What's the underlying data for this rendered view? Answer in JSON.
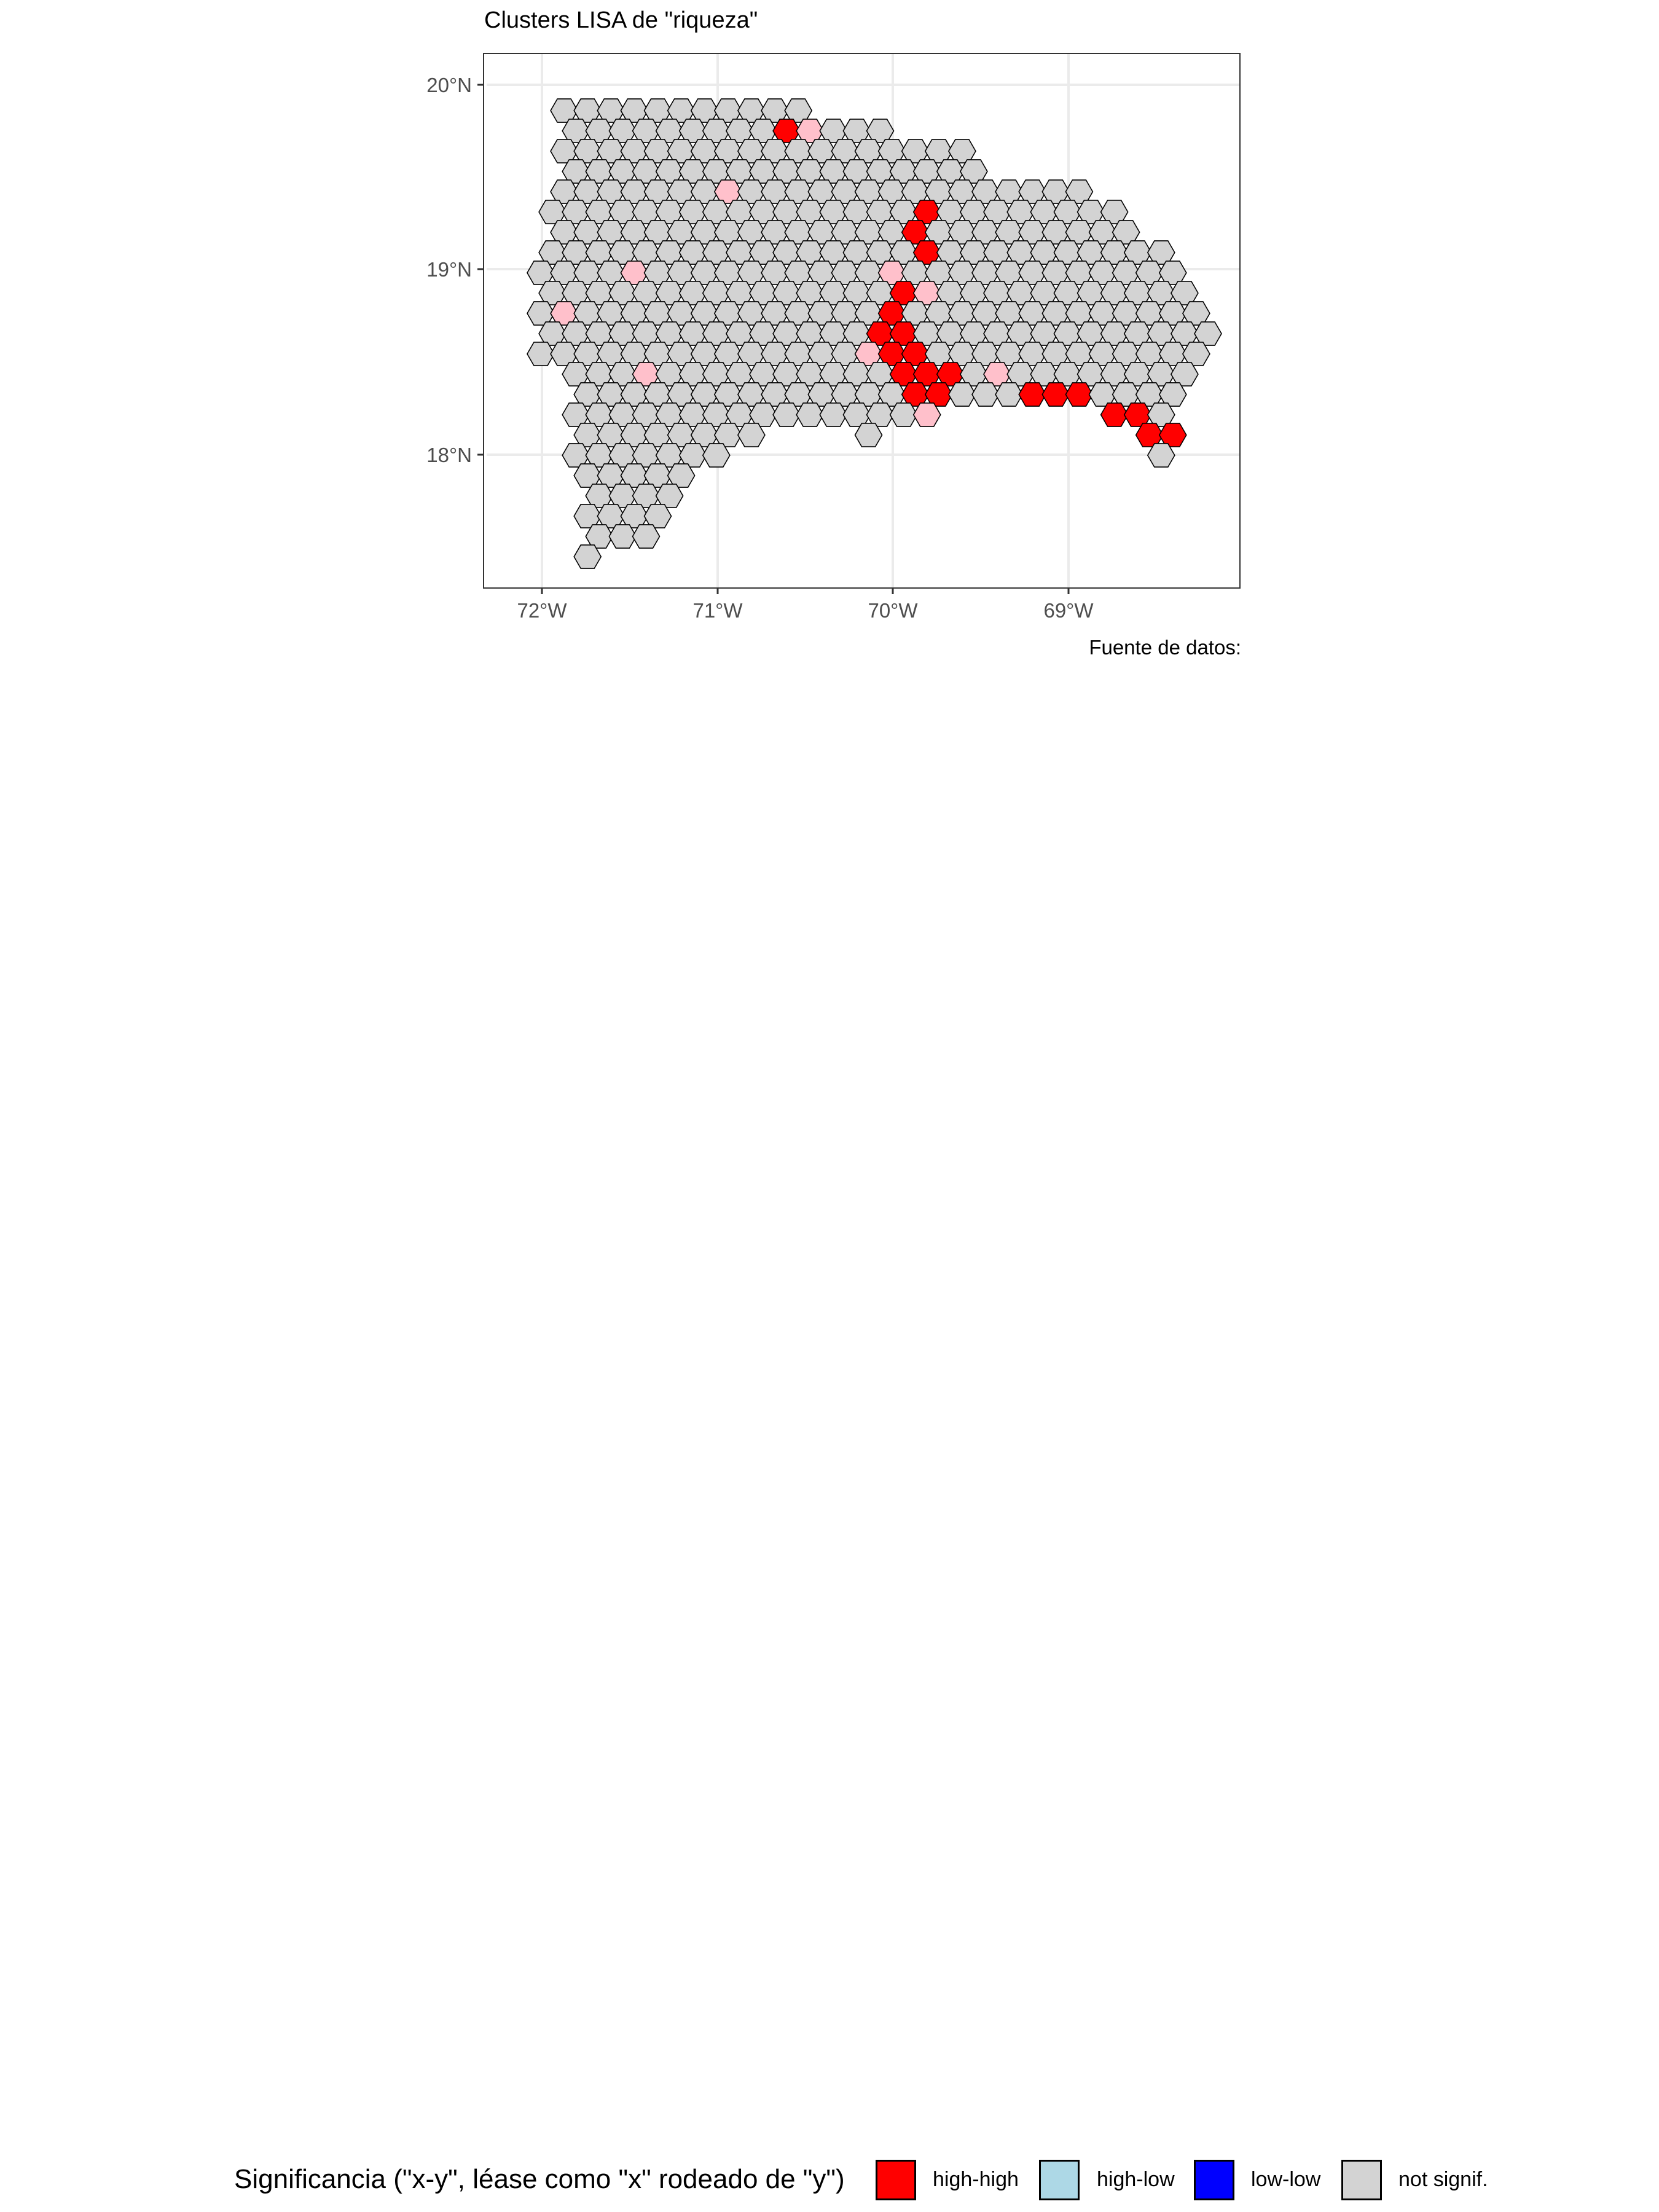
{
  "title": "Clusters LISA de \"riqueza\"",
  "caption": "Fuente de datos:",
  "x_axis_ticks": [
    "72°W",
    "71°W",
    "70°W",
    "69°W"
  ],
  "y_axis_ticks": [
    "20°N",
    "19°N",
    "18°N"
  ],
  "legend": {
    "title": "Significancia (\"x-y\", léase como \"x\" rodeado de \"y\")",
    "items": [
      {
        "label": "high-high",
        "color": "#FF0000"
      },
      {
        "label": "high-low",
        "color": "#ADD8E6"
      },
      {
        "label": "low-low",
        "color": "#0000FF"
      },
      {
        "label": "not signif.",
        "color": "#D3D3D3"
      }
    ]
  },
  "colors": {
    "high_high": "#FF0000",
    "low_high": "#FFC0CB",
    "not_signif": "#D3D3D3",
    "outline": "#000000",
    "grid": "#EBEBEB",
    "panel_border": "#333333"
  }
}
